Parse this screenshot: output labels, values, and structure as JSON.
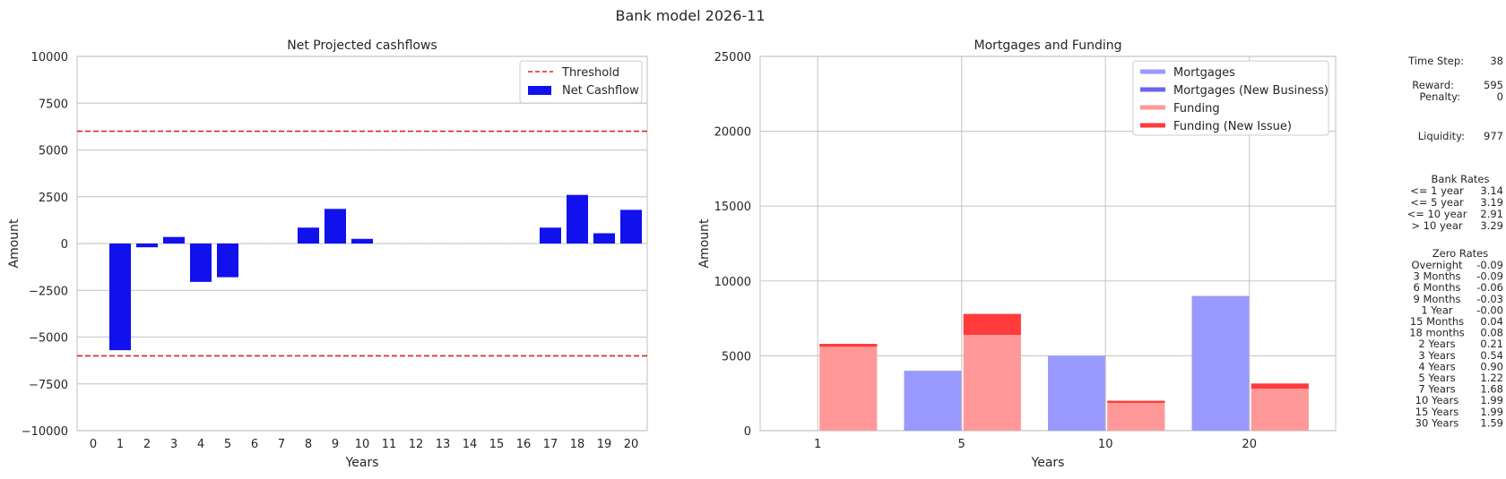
{
  "suptitle": "Bank model 2026-11",
  "chart_data": [
    {
      "type": "bar",
      "title": "Net Projected cashflows",
      "xlabel": "Years",
      "ylabel": "Amount",
      "ylim": [
        -10000,
        10000
      ],
      "yticks": [
        -10000,
        -7500,
        -5000,
        -2500,
        0,
        2500,
        5000,
        7500,
        10000
      ],
      "ytick_labels": [
        "−10000",
        "−7500",
        "−5000",
        "−2500",
        "0",
        "2500",
        "5000",
        "7500",
        "10000"
      ],
      "categories": [
        "0",
        "1",
        "2",
        "3",
        "4",
        "5",
        "6",
        "7",
        "8",
        "9",
        "10",
        "11",
        "12",
        "13",
        "14",
        "15",
        "16",
        "17",
        "18",
        "19",
        "20"
      ],
      "series": [
        {
          "name": "Net Cashflow",
          "color": "#1111ee",
          "values": [
            0,
            -5700,
            -200,
            350,
            -2050,
            -1800,
            0,
            0,
            850,
            1850,
            250,
            0,
            0,
            0,
            0,
            0,
            0,
            850,
            2600,
            550,
            1800
          ]
        }
      ],
      "threshold": {
        "name": "Threshold",
        "color": "#d62728",
        "values": [
          6000,
          -6000
        ]
      },
      "grid": true,
      "legend": "top-right"
    },
    {
      "type": "bar",
      "title": "Mortgages and Funding",
      "xlabel": "Years",
      "ylabel": "Amount",
      "ylim": [
        0,
        25000
      ],
      "yticks": [
        0,
        5000,
        10000,
        15000,
        20000,
        25000
      ],
      "ytick_labels": [
        "0",
        "5000",
        "10000",
        "15000",
        "20000",
        "25000"
      ],
      "categories": [
        "1",
        "5",
        "10",
        "20"
      ],
      "series": [
        {
          "name": "Mortgages",
          "color": "#9999ff",
          "values": [
            0,
            4000,
            5000,
            9000
          ]
        },
        {
          "name": "Mortgages (New Business)",
          "color": "#6666ee",
          "values": [
            0,
            0,
            0,
            0
          ]
        },
        {
          "name": "Funding",
          "color": "#ff9999",
          "values": [
            5600,
            6400,
            1850,
            2800
          ]
        },
        {
          "name": "Funding (New Issue)",
          "color": "#ff3b3b",
          "values": [
            200,
            1400,
            150,
            350
          ]
        }
      ],
      "grid": true,
      "legend": "top-right"
    }
  ],
  "panel": {
    "time_step_label": "Time Step:",
    "time_step": "38",
    "reward_label": "Reward:",
    "reward": "595",
    "penalty_label": "Penalty:",
    "penalty": "0",
    "liquidity_label": "Liquidity:",
    "liquidity": "977",
    "bank_rates_title": "Bank Rates",
    "bank_rates": [
      {
        "label": "<= 1 year",
        "value": "3.14"
      },
      {
        "label": "<= 5 year",
        "value": "3.19"
      },
      {
        "label": "<= 10 year",
        "value": "2.91"
      },
      {
        "label": "> 10 year",
        "value": "3.29"
      }
    ],
    "zero_rates_title": "Zero Rates",
    "zero_rates": [
      {
        "label": "Overnight",
        "value": "-0.09"
      },
      {
        "label": "3 Months",
        "value": "-0.09"
      },
      {
        "label": "6 Months",
        "value": "-0.06"
      },
      {
        "label": "9 Months",
        "value": "-0.03"
      },
      {
        "label": "1 Year",
        "value": "-0.00"
      },
      {
        "label": "15 Months",
        "value": "0.04"
      },
      {
        "label": "18 months",
        "value": "0.08"
      },
      {
        "label": "2 Years",
        "value": "0.21"
      },
      {
        "label": "3 Years",
        "value": "0.54"
      },
      {
        "label": "4 Years",
        "value": "0.90"
      },
      {
        "label": "5 Years",
        "value": "1.22"
      },
      {
        "label": "7 Years",
        "value": "1.68"
      },
      {
        "label": "10 Years",
        "value": "1.99"
      },
      {
        "label": "15 Years",
        "value": "1.99"
      },
      {
        "label": "30 Years",
        "value": "1.59"
      }
    ]
  }
}
